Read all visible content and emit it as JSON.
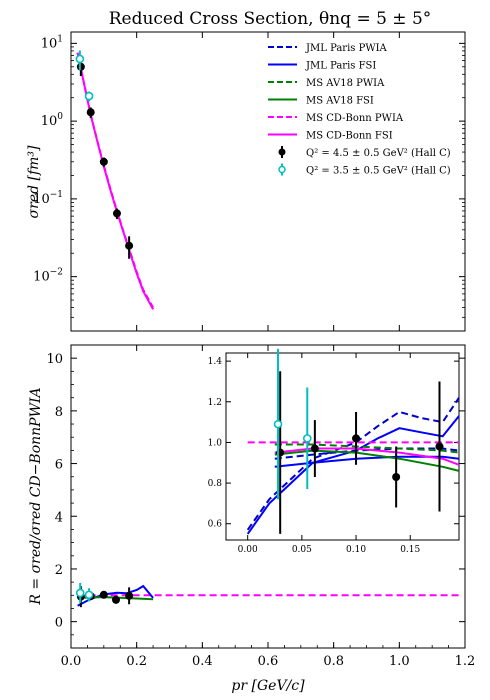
{
  "chart_data": [
    {
      "type": "line",
      "title": "Reduced Cross Section, θnq = 5 ± 5°",
      "ylabel": "σred [fm³]",
      "yscale": "log",
      "xlim": [
        0,
        1.2
      ],
      "ylim": [
        0.002,
        14
      ],
      "ytick_labels": [
        {
          "v": 10,
          "base": "10",
          "exp": "1"
        },
        {
          "v": 1,
          "base": "10",
          "exp": "0"
        },
        {
          "v": 0.1,
          "base": "10",
          "exp": "−1"
        },
        {
          "v": 0.01,
          "base": "10",
          "exp": "−2"
        }
      ],
      "legend_position": "top-right",
      "legend": [
        {
          "label": "JML Paris PWIA",
          "color": "#0000cc",
          "dash": true,
          "kind": "line"
        },
        {
          "label": "JML Paris FSI",
          "color": "#0000ff",
          "dash": false,
          "kind": "line"
        },
        {
          "label": "MS AV18 PWIA",
          "color": "#008000",
          "dash": true,
          "kind": "line"
        },
        {
          "label": "MS AV18 FSI",
          "color": "#008000",
          "dash": false,
          "kind": "line"
        },
        {
          "label": "MS CD-Bonn PWIA",
          "color": "#ff00ff",
          "dash": true,
          "kind": "line"
        },
        {
          "label": "MS CD-Bonn FSI",
          "color": "#ff00ff",
          "dash": false,
          "kind": "line"
        },
        {
          "label": "Q² = 4.5 ± 0.5 GeV² (Hall C)",
          "color": "#000000",
          "kind": "point-filled"
        },
        {
          "label": "Q² = 3.5 ± 0.5 GeV² (Hall C)",
          "color": "#00bfbf",
          "kind": "point-open"
        }
      ],
      "series": [
        {
          "name": "MS CD-Bonn FSI",
          "x": [
            0.02,
            0.04,
            0.06,
            0.08,
            0.1,
            0.12,
            0.14,
            0.16,
            0.18,
            0.2,
            0.22,
            0.25
          ],
          "y": [
            7.5,
            3.0,
            1.2,
            0.55,
            0.26,
            0.13,
            0.068,
            0.037,
            0.02,
            0.011,
            0.0065,
            0.0038
          ]
        },
        {
          "name": "MS CD-Bonn PWIA",
          "x": [
            0.02,
            0.04,
            0.06,
            0.08,
            0.1,
            0.12,
            0.14,
            0.16,
            0.18,
            0.2,
            0.22,
            0.25
          ],
          "y": [
            7.6,
            3.05,
            1.22,
            0.56,
            0.27,
            0.135,
            0.07,
            0.038,
            0.021,
            0.0115,
            0.0068,
            0.004
          ]
        }
      ],
      "points": {
        "q45": {
          "x": [
            0.03,
            0.06,
            0.1,
            0.14,
            0.177
          ],
          "y": [
            5.0,
            1.3,
            0.3,
            0.065,
            0.025
          ],
          "yerr": [
            1.2,
            0.2,
            0.04,
            0.01,
            0.008
          ]
        },
        "q35": {
          "x": [
            0.027,
            0.055
          ],
          "y": [
            6.3,
            2.1
          ],
          "yerr": [
            1.8,
            0.3
          ]
        }
      }
    },
    {
      "type": "line",
      "ylabel": "R = σred/σred CD−BonnPWIA",
      "xlabel": "pr [GeV/c]",
      "xlim": [
        0,
        1.2
      ],
      "ylim": [
        -1,
        10.5
      ],
      "xticks": [
        0.0,
        0.2,
        0.4,
        0.6,
        0.8,
        1.0,
        1.2
      ],
      "xtick_labels": [
        "0.0",
        "0.2",
        "0.4",
        "0.6",
        "0.8",
        "1.0",
        "1.2"
      ],
      "yticks": [
        0,
        2,
        4,
        6,
        8,
        10
      ],
      "ytick_labels": [
        "0",
        "2",
        "4",
        "6",
        "8",
        "10"
      ],
      "series": [
        {
          "name": "MS CD-Bonn PWIA",
          "x": [
            0.02,
            1.19
          ],
          "y": [
            1.0,
            1.0
          ]
        },
        {
          "name": "JML Paris FSI",
          "x": [
            0.02,
            0.05,
            0.08,
            0.11,
            0.14,
            0.17,
            0.2,
            0.22,
            0.25
          ],
          "y": [
            0.6,
            0.8,
            0.95,
            1.05,
            1.1,
            1.08,
            1.2,
            1.35,
            0.9
          ]
        },
        {
          "name": "MS AV18 FSI",
          "x": [
            0.02,
            0.1,
            0.2,
            0.25
          ],
          "y": [
            0.9,
            0.93,
            0.88,
            0.85
          ]
        }
      ],
      "points": {
        "q45": {
          "x": [
            0.03,
            0.06,
            0.1,
            0.137,
            0.177
          ],
          "y": [
            0.95,
            0.97,
            1.02,
            0.83,
            0.98
          ],
          "yerr": [
            0.4,
            0.15,
            0.13,
            0.15,
            0.32
          ]
        },
        "q35": {
          "x": [
            0.028,
            0.055
          ],
          "y": [
            1.09,
            1.02
          ],
          "yerr": [
            0.38,
            0.25
          ]
        }
      }
    },
    {
      "type": "line",
      "xlim": [
        -0.02,
        0.195
      ],
      "ylim": [
        0.52,
        1.44
      ],
      "xticks": [
        0.0,
        0.05,
        0.1,
        0.15
      ],
      "xtick_labels": [
        "0.00",
        "0.05",
        "0.10",
        "0.15"
      ],
      "yticks": [
        0.6,
        0.8,
        1.0,
        1.2,
        1.4
      ],
      "ytick_labels": [
        "0.6",
        "0.8",
        "1.0",
        "1.2",
        "1.4"
      ],
      "series": [
        {
          "name": "JML Paris PWIA",
          "color": "#0000cc",
          "dash": true,
          "x": [
            0.0,
            0.02,
            0.04,
            0.06,
            0.08,
            0.1,
            0.12,
            0.14,
            0.16,
            0.18,
            0.195
          ],
          "y": [
            0.57,
            0.72,
            0.82,
            0.92,
            0.96,
            1.0,
            1.08,
            1.15,
            1.12,
            1.1,
            1.22
          ]
        },
        {
          "name": "JML Paris FSI",
          "color": "#0000ff",
          "dash": false,
          "x": [
            0.0,
            0.02,
            0.04,
            0.06,
            0.08,
            0.1,
            0.12,
            0.14,
            0.16,
            0.18,
            0.195
          ],
          "y": [
            0.55,
            0.7,
            0.8,
            0.9,
            0.93,
            0.96,
            1.02,
            1.07,
            1.05,
            1.03,
            1.13
          ]
        },
        {
          "name": "JML Paris FSI (low)",
          "color": "#0000ff",
          "dash": false,
          "x": [
            0.025,
            0.06,
            0.1,
            0.14,
            0.18,
            0.195
          ],
          "y": [
            0.88,
            0.9,
            0.92,
            0.93,
            0.93,
            0.92
          ]
        },
        {
          "name": "JML Paris PWIA (low)",
          "color": "#0000cc",
          "dash": true,
          "x": [
            0.025,
            0.06,
            0.1,
            0.14,
            0.18,
            0.195
          ],
          "y": [
            0.92,
            0.94,
            0.96,
            0.97,
            0.97,
            0.96
          ]
        },
        {
          "name": "MS AV18 PWIA",
          "color": "#008000",
          "dash": true,
          "x": [
            0.025,
            0.06,
            0.1,
            0.14,
            0.18,
            0.195
          ],
          "y": [
            0.99,
            0.99,
            0.98,
            0.97,
            0.96,
            0.95
          ]
        },
        {
          "name": "MS AV18 FSI",
          "color": "#008000",
          "dash": false,
          "x": [
            0.025,
            0.06,
            0.1,
            0.14,
            0.18,
            0.195
          ],
          "y": [
            0.94,
            0.96,
            0.95,
            0.92,
            0.88,
            0.86
          ]
        },
        {
          "name": "MS CD-Bonn PWIA",
          "color": "#ff00ff",
          "dash": true,
          "x": [
            0.0,
            0.195
          ],
          "y": [
            1.0,
            1.0
          ]
        },
        {
          "name": "MS CD-Bonn FSI",
          "color": "#ff00ff",
          "dash": false,
          "x": [
            0.025,
            0.06,
            0.1,
            0.14,
            0.18,
            0.195
          ],
          "y": [
            0.95,
            0.97,
            0.97,
            0.95,
            0.92,
            0.89
          ]
        }
      ],
      "points": {
        "q45": {
          "x": [
            0.03,
            0.062,
            0.1,
            0.137,
            0.177
          ],
          "y": [
            0.95,
            0.97,
            1.02,
            0.83,
            0.98
          ],
          "yerr": [
            0.4,
            0.14,
            0.13,
            0.15,
            0.32
          ]
        },
        "q35": {
          "x": [
            0.028,
            0.055
          ],
          "y": [
            1.09,
            1.02
          ],
          "yerr": [
            0.37,
            0.25
          ]
        }
      }
    }
  ]
}
